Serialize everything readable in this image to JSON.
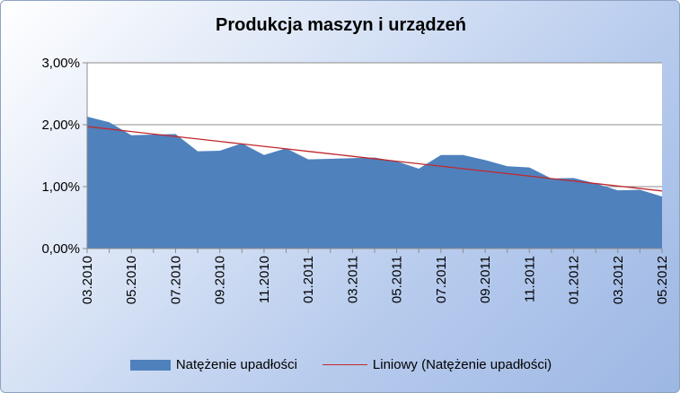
{
  "chart_data": {
    "type": "area",
    "title": "Produkcja maszyn i urządzeń",
    "xlabel": "",
    "ylabel": "",
    "ylim": [
      0,
      3
    ],
    "y_ticks": [
      "3,00%",
      "2,00%",
      "1,00%",
      "0,00%"
    ],
    "y_tick_values": [
      3,
      2,
      1,
      0
    ],
    "x_tick_labels": [
      "03.2010",
      "05.2010",
      "07.2010",
      "09.2010",
      "11.2010",
      "01.2011",
      "03.2011",
      "05.2011",
      "07.2011",
      "09.2011",
      "11.2011",
      "01.2012",
      "03.2012",
      "05.2012"
    ],
    "categories": [
      "03.2010",
      "04.2010",
      "05.2010",
      "06.2010",
      "07.2010",
      "08.2010",
      "09.2010",
      "10.2010",
      "11.2010",
      "12.2010",
      "01.2011",
      "02.2011",
      "03.2011",
      "04.2011",
      "05.2011",
      "06.2011",
      "07.2011",
      "08.2011",
      "09.2011",
      "10.2011",
      "11.2011",
      "12.2011",
      "01.2012",
      "02.2012",
      "03.2012",
      "04.2012",
      "05.2012"
    ],
    "grid": true,
    "legend_placement": "bottom",
    "series": [
      {
        "name": "Natężenie upadłości",
        "type": "area",
        "color": "#4f81bd",
        "values": [
          2.13,
          2.04,
          1.83,
          1.84,
          1.85,
          1.57,
          1.58,
          1.7,
          1.51,
          1.62,
          1.44,
          1.45,
          1.46,
          1.47,
          1.41,
          1.29,
          1.51,
          1.51,
          1.43,
          1.33,
          1.31,
          1.13,
          1.14,
          1.05,
          0.94,
          0.95,
          0.84
        ]
      },
      {
        "name": "Liniowy (Natężenie upadłości)",
        "type": "line",
        "color": "#c0282d",
        "values": [
          1.97,
          1.93,
          1.89,
          1.85,
          1.81,
          1.77,
          1.73,
          1.69,
          1.65,
          1.61,
          1.57,
          1.53,
          1.49,
          1.45,
          1.41,
          1.37,
          1.33,
          1.29,
          1.25,
          1.21,
          1.17,
          1.13,
          1.09,
          1.05,
          1.01,
          0.97,
          0.93
        ]
      }
    ]
  },
  "legend": {
    "series1_label": "Natężenie upadłości",
    "series2_label": "Liniowy (Natężenie upadłości)"
  },
  "colors": {
    "area": "#4f81bd",
    "trend": "#c0282d",
    "plot_background": "#ffffff",
    "grid": "#8c8c8c"
  }
}
